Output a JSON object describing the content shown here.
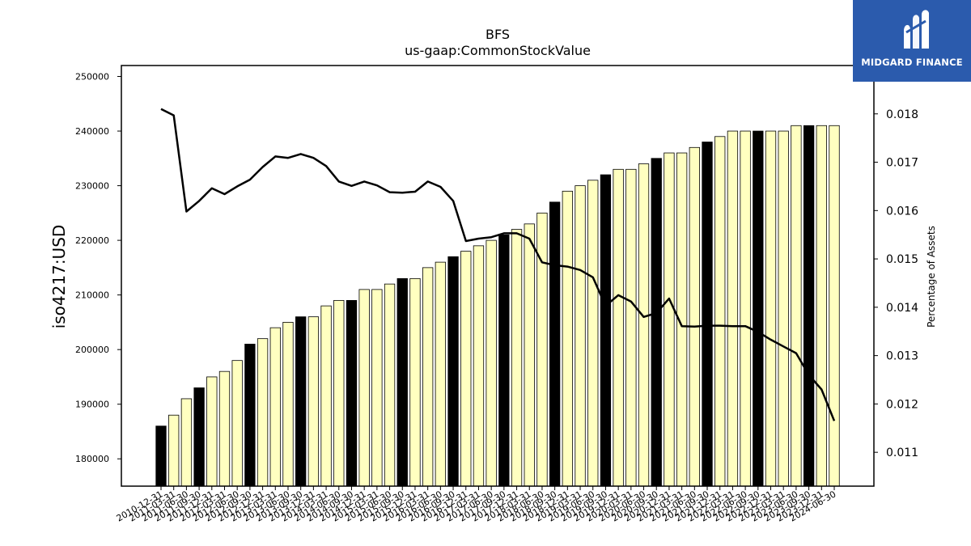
{
  "logo": {
    "text": "MIDGARD FINANCE",
    "bg": "#2b5bad",
    "fg": "#ffffff"
  },
  "chart_data": {
    "type": "bar+line",
    "title": "BFS",
    "subtitle": "us-gaap:CommonStockValue",
    "ylabel": "iso4217:USD",
    "y2label": "Percentage of Assets",
    "ylim": [
      175000,
      252000
    ],
    "y2lim": [
      0.0103,
      0.019
    ],
    "yticks": [
      180000,
      190000,
      200000,
      210000,
      220000,
      230000,
      240000,
      250000
    ],
    "y2ticks": [
      0.011,
      0.012,
      0.013,
      0.014,
      0.015,
      0.016,
      0.017,
      0.018
    ],
    "colors": {
      "bar_fill": "#ffffc0",
      "bar_highlight": "#000000",
      "line": "#000000"
    },
    "bars": [
      {
        "x": "2010-12-31",
        "value": 186000,
        "highlight": true
      },
      {
        "x": "2011-03-31",
        "value": 188000,
        "highlight": false
      },
      {
        "x": "2011-06-30",
        "value": 191000,
        "highlight": false
      },
      {
        "x": "2011-09-30",
        "value": 193000,
        "highlight": true
      },
      {
        "x": "2011-12-31",
        "value": 195000,
        "highlight": false
      },
      {
        "x": "2012-03-31",
        "value": 196000,
        "highlight": false
      },
      {
        "x": "2012-06-30",
        "value": 198000,
        "highlight": false
      },
      {
        "x": "2012-09-30",
        "value": 201000,
        "highlight": true
      },
      {
        "x": "2012-12-31",
        "value": 202000,
        "highlight": false
      },
      {
        "x": "2013-03-31",
        "value": 204000,
        "highlight": false
      },
      {
        "x": "2013-06-30",
        "value": 205000,
        "highlight": false
      },
      {
        "x": "2013-09-30",
        "value": 206000,
        "highlight": true
      },
      {
        "x": "2013-12-31",
        "value": 206000,
        "highlight": false
      },
      {
        "x": "2014-03-31",
        "value": 208000,
        "highlight": false
      },
      {
        "x": "2014-06-30",
        "value": 209000,
        "highlight": false
      },
      {
        "x": "2014-09-30",
        "value": 209000,
        "highlight": true
      },
      {
        "x": "2014-12-31",
        "value": 211000,
        "highlight": false
      },
      {
        "x": "2015-03-31",
        "value": 211000,
        "highlight": false
      },
      {
        "x": "2015-06-30",
        "value": 212000,
        "highlight": false
      },
      {
        "x": "2015-09-30",
        "value": 213000,
        "highlight": true
      },
      {
        "x": "2015-12-31",
        "value": 213000,
        "highlight": false
      },
      {
        "x": "2016-03-31",
        "value": 215000,
        "highlight": false
      },
      {
        "x": "2016-06-30",
        "value": 216000,
        "highlight": false
      },
      {
        "x": "2016-09-30",
        "value": 217000,
        "highlight": true
      },
      {
        "x": "2016-12-31",
        "value": 218000,
        "highlight": false
      },
      {
        "x": "2017-03-31",
        "value": 219000,
        "highlight": false
      },
      {
        "x": "2017-06-30",
        "value": 220000,
        "highlight": false
      },
      {
        "x": "2017-09-30",
        "value": 221000,
        "highlight": true
      },
      {
        "x": "2017-12-31",
        "value": 222000,
        "highlight": false
      },
      {
        "x": "2018-03-31",
        "value": 223000,
        "highlight": false
      },
      {
        "x": "2018-06-30",
        "value": 225000,
        "highlight": false
      },
      {
        "x": "2018-09-30",
        "value": 227000,
        "highlight": true
      },
      {
        "x": "2018-12-31",
        "value": 229000,
        "highlight": false
      },
      {
        "x": "2019-03-31",
        "value": 230000,
        "highlight": false
      },
      {
        "x": "2019-06-30",
        "value": 231000,
        "highlight": false
      },
      {
        "x": "2019-09-30",
        "value": 232000,
        "highlight": true
      },
      {
        "x": "2019-12-31",
        "value": 233000,
        "highlight": false
      },
      {
        "x": "2020-03-31",
        "value": 233000,
        "highlight": false
      },
      {
        "x": "2020-06-30",
        "value": 234000,
        "highlight": false
      },
      {
        "x": "2020-09-30",
        "value": 235000,
        "highlight": true
      },
      {
        "x": "2020-12-31",
        "value": 236000,
        "highlight": false
      },
      {
        "x": "2021-03-31",
        "value": 236000,
        "highlight": false
      },
      {
        "x": "2021-06-30",
        "value": 237000,
        "highlight": false
      },
      {
        "x": "2021-09-30",
        "value": 238000,
        "highlight": true
      },
      {
        "x": "2021-12-31",
        "value": 239000,
        "highlight": false
      },
      {
        "x": "2022-03-31",
        "value": 240000,
        "highlight": false
      },
      {
        "x": "2022-06-30",
        "value": 240000,
        "highlight": false
      },
      {
        "x": "2022-09-30",
        "value": 240000,
        "highlight": true
      },
      {
        "x": "2022-12-31",
        "value": 240000,
        "highlight": false
      },
      {
        "x": "2023-03-31",
        "value": 240000,
        "highlight": false
      },
      {
        "x": "2023-06-30",
        "value": 241000,
        "highlight": false
      },
      {
        "x": "2023-09-30",
        "value": 241000,
        "highlight": true
      },
      {
        "x": "2023-12-31",
        "value": 241000,
        "highlight": false
      },
      {
        "x": "2024-06-30",
        "value": 241000,
        "highlight": false
      }
    ],
    "line": [
      0.0181,
      0.01797,
      0.01598,
      0.0162,
      0.01646,
      0.01634,
      0.0165,
      0.01664,
      0.0169,
      0.01712,
      0.01709,
      0.01717,
      0.01709,
      0.01692,
      0.0166,
      0.01651,
      0.0166,
      0.01652,
      0.01638,
      0.01637,
      0.01639,
      0.0166,
      0.01649,
      0.0162,
      0.01537,
      0.01542,
      0.01545,
      0.01553,
      0.01553,
      0.01542,
      0.01493,
      0.01487,
      0.01484,
      0.01477,
      0.01462,
      0.01403,
      0.01425,
      0.01412,
      0.0138,
      0.01388,
      0.01418,
      0.01361,
      0.0136,
      0.01362,
      0.01362,
      0.01361,
      0.01361,
      0.01349,
      0.01333,
      0.01319,
      0.01305,
      0.0126,
      0.0123,
      0.01165
    ]
  }
}
